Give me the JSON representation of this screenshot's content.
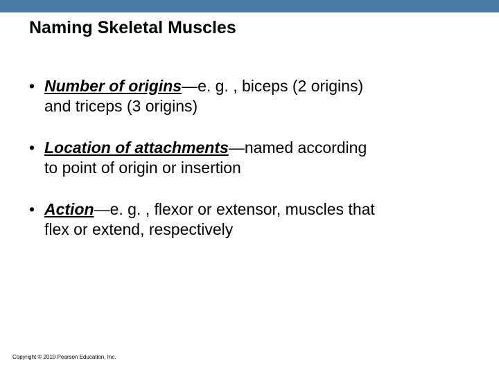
{
  "colors": {
    "topbar": "#4a7ba6",
    "background": "#ffffff",
    "text": "#000000"
  },
  "title": "Naming Skeletal Muscles",
  "bullets": [
    {
      "emph": "Number of origins",
      "rest_line1": "—e. g. , biceps (2 origins)",
      "line2": "and triceps (3 origins)"
    },
    {
      "emph": "Location of attachments",
      "rest_line1": "—named according",
      "line2": "to point of origin or insertion"
    },
    {
      "emph": "Action",
      "rest_line1": "—e. g. , flexor or extensor, muscles that",
      "line2": "flex or extend, respectively"
    }
  ],
  "copyright": "Copyright © 2010 Pearson Education, Inc."
}
